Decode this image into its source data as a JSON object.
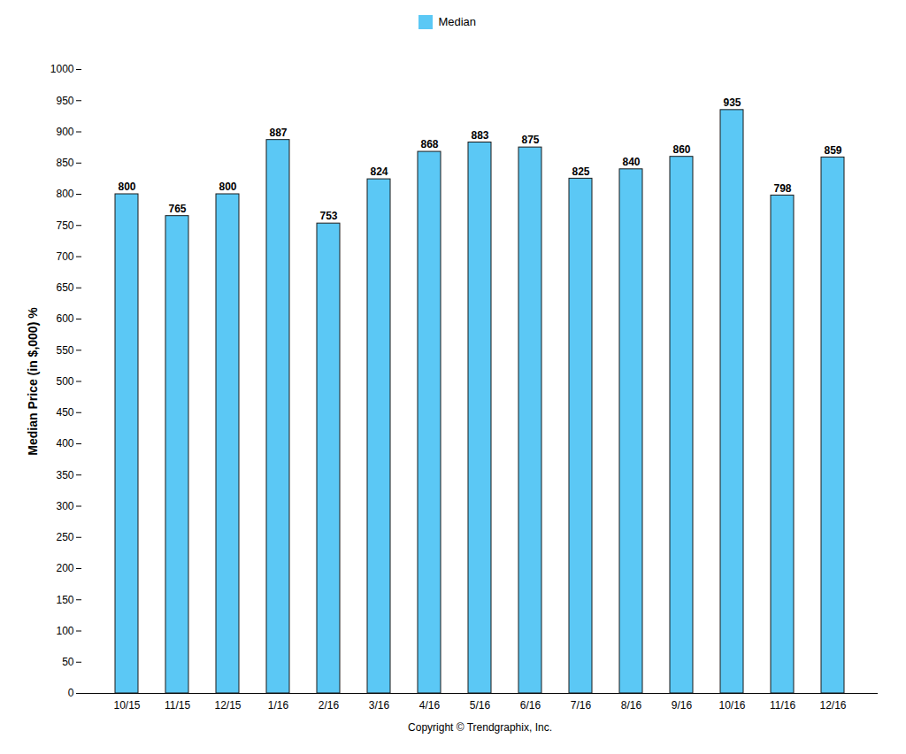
{
  "chart_data": {
    "type": "bar",
    "categories": [
      "10/15",
      "11/15",
      "12/15",
      "1/16",
      "2/16",
      "3/16",
      "4/16",
      "5/16",
      "6/16",
      "7/16",
      "8/16",
      "9/16",
      "10/16",
      "11/16",
      "12/16"
    ],
    "series": [
      {
        "name": "Median",
        "color": "#5BC8F5",
        "values": [
          800,
          765,
          800,
          887,
          753,
          824,
          868,
          883,
          875,
          825,
          840,
          860,
          935,
          798,
          859
        ]
      }
    ],
    "ylabel": "Median Price (in $,000) %",
    "xlabel": "Copyright © Trendgraphix, Inc.",
    "ylim": [
      0,
      1000
    ],
    "yticks": [
      0,
      50,
      100,
      150,
      200,
      250,
      300,
      350,
      400,
      450,
      500,
      550,
      600,
      650,
      700,
      750,
      800,
      850,
      900,
      950,
      1000
    ],
    "grid": false,
    "legend": "top",
    "data_labels": true
  }
}
